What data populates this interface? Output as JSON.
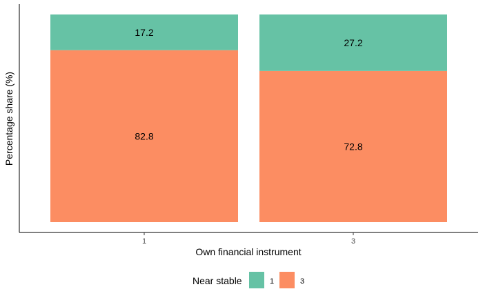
{
  "chart_data": {
    "type": "bar",
    "stacked": true,
    "percent": true,
    "categories": [
      "1",
      "3"
    ],
    "series": [
      {
        "name": "3",
        "values": [
          82.8,
          72.8
        ],
        "color": "#FC8D62"
      },
      {
        "name": "1",
        "values": [
          17.2,
          27.2
        ],
        "color": "#66C2A5"
      }
    ],
    "xlabel": "Own financial instrument",
    "ylabel": "Percentage share (%)",
    "ylim": [
      0,
      100
    ],
    "grid": false,
    "legend": {
      "title": "Near stable",
      "position": "bottom",
      "items": [
        {
          "label": "1",
          "color": "#66C2A5"
        },
        {
          "label": "3",
          "color": "#FC8D62"
        }
      ]
    }
  }
}
